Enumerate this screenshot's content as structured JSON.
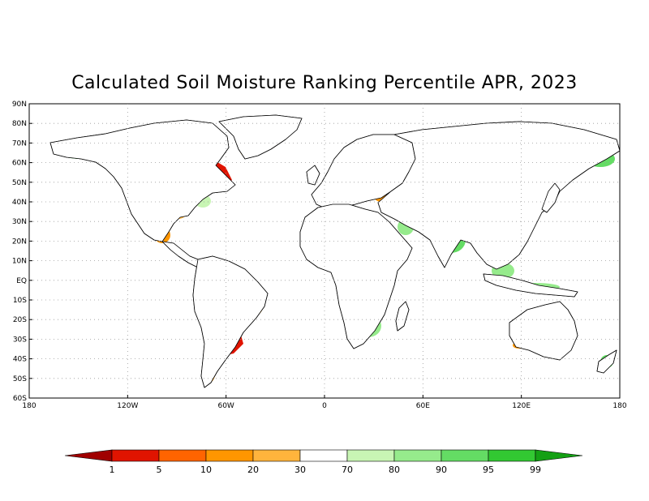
{
  "title": "Calculated Soil Moisture Ranking Percentile APR, 2023",
  "map": {
    "projection": "equirectangular",
    "lon_range": [
      -180,
      180
    ],
    "lat_range": [
      -60,
      90
    ],
    "grid": true,
    "lat_ticks": [
      {
        "value": 90,
        "label": "90N"
      },
      {
        "value": 80,
        "label": "80N"
      },
      {
        "value": 70,
        "label": "70N"
      },
      {
        "value": 60,
        "label": "60N"
      },
      {
        "value": 50,
        "label": "50N"
      },
      {
        "value": 40,
        "label": "40N"
      },
      {
        "value": 30,
        "label": "30N"
      },
      {
        "value": 20,
        "label": "20N"
      },
      {
        "value": 10,
        "label": "10N"
      },
      {
        "value": 0,
        "label": "EQ"
      },
      {
        "value": -10,
        "label": "10S"
      },
      {
        "value": -20,
        "label": "20S"
      },
      {
        "value": -30,
        "label": "30S"
      },
      {
        "value": -40,
        "label": "40S"
      },
      {
        "value": -50,
        "label": "50S"
      },
      {
        "value": -60,
        "label": "60S"
      }
    ],
    "lon_ticks": [
      {
        "value": -180,
        "label": "180"
      },
      {
        "value": -120,
        "label": "120W"
      },
      {
        "value": -60,
        "label": "60W"
      },
      {
        "value": 0,
        "label": "0"
      },
      {
        "value": 60,
        "label": "60E"
      },
      {
        "value": 120,
        "label": "120E"
      },
      {
        "value": 180,
        "label": "180"
      }
    ]
  },
  "colorbar": {
    "labels": [
      "1",
      "5",
      "10",
      "20",
      "30",
      "70",
      "80",
      "90",
      "95",
      "99"
    ],
    "colors": [
      "#a00000",
      "#e01400",
      "#ff6400",
      "#ff9600",
      "#ffb43c",
      "#ffffff",
      "#c8f5b4",
      "#96eb8c",
      "#64dc64",
      "#32c832",
      "#14a014"
    ]
  },
  "colors": {
    "land_neutral": "#ffffff",
    "coast": "#000000",
    "grid": "#9a9a9a"
  }
}
